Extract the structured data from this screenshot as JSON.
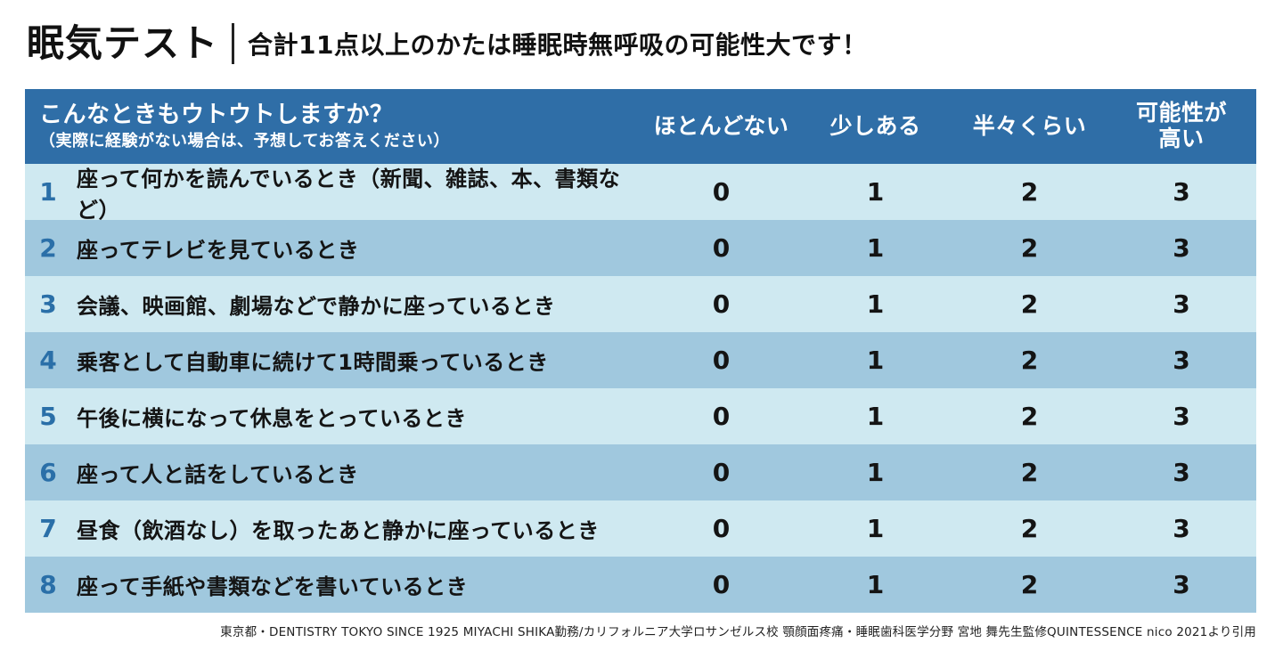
{
  "page": {
    "title": "眠気テスト",
    "subtitle": "合計11点以上のかたは睡眠時無呼吸の可能性大です！"
  },
  "table": {
    "question_header": "こんなときもウトウトしますか？",
    "question_note": "（実際に経験がない場合は、予想してお答えください）",
    "columns": [
      "ほとんどない",
      "少しある",
      "半々くらい",
      "可能性が高い"
    ],
    "rows": [
      {
        "number": "1",
        "question": "座って何かを読んでいるとき（新聞、雑誌、本、書類など）",
        "scores": [
          "0",
          "1",
          "2",
          "3"
        ]
      },
      {
        "number": "2",
        "question": "座ってテレビを見ているとき",
        "scores": [
          "0",
          "1",
          "2",
          "3"
        ]
      },
      {
        "number": "3",
        "question": "会議、映画館、劇場などで静かに座っているとき",
        "scores": [
          "0",
          "1",
          "2",
          "3"
        ]
      },
      {
        "number": "4",
        "question": "乗客として自動車に続けて1時間乗っているとき",
        "scores": [
          "0",
          "1",
          "2",
          "3"
        ]
      },
      {
        "number": "5",
        "question": "午後に横になって休息をとっているとき",
        "scores": [
          "0",
          "1",
          "2",
          "3"
        ]
      },
      {
        "number": "6",
        "question": "座って人と話をしているとき",
        "scores": [
          "0",
          "1",
          "2",
          "3"
        ]
      },
      {
        "number": "7",
        "question": "昼食（飲酒なし）を取ったあと静かに座っているとき",
        "scores": [
          "0",
          "1",
          "2",
          "3"
        ]
      },
      {
        "number": "8",
        "question": "座って手紙や書類などを書いているとき",
        "scores": [
          "0",
          "1",
          "2",
          "3"
        ]
      }
    ]
  },
  "footer": {
    "citation": "東京都・DENTISTRY TOKYO SINCE 1925 MIYACHI SHIKA勤務/カリフォルニア大学ロサンゼルス校 顎顔面疼痛・睡眠歯科医学分野 宮地 舞先生監修QUINTESSENCE nico 2021より引用"
  },
  "colors": {
    "header_bg": "#2f6ea7",
    "row_light": "#cfe9f1",
    "row_dark": "#a0c8de",
    "number_blue": "#2a6fa8"
  }
}
